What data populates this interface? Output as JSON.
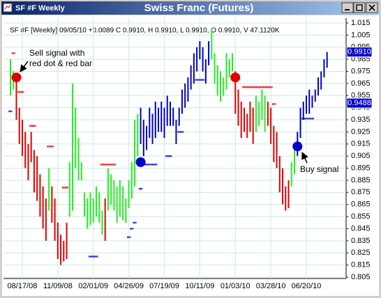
{
  "window": {
    "title": "SF #F Weekly"
  },
  "chart_data": {
    "type": "ohlc",
    "title": "Swiss Franc (Futures)",
    "subtitle": "SF #F [Weekly] 09/05/10 +0.0089 C 0.9910, H 0.9910, L 0.9910, O 0.9910, V 47.1120K",
    "categories": [
      null,
      null,
      null,
      null,
      "08/17/08",
      null,
      null,
      null,
      null,
      null,
      null,
      null,
      null,
      null,
      null,
      null,
      "11/09/08",
      null,
      null,
      null,
      null,
      null,
      null,
      null,
      null,
      null,
      null,
      null,
      "02/01/09",
      null,
      null,
      null,
      null,
      null,
      null,
      null,
      null,
      null,
      null,
      null,
      "04/26/09",
      null,
      null,
      null,
      null,
      null,
      null,
      null,
      null,
      null,
      null,
      null,
      "07/19/09",
      null,
      null,
      null,
      null,
      null,
      null,
      null,
      null,
      null,
      null,
      null,
      "10/11/09",
      null,
      null,
      null,
      null,
      null,
      null,
      null,
      null,
      null,
      null,
      null,
      "01/03/10",
      null,
      null,
      null,
      null,
      null,
      null,
      null,
      null,
      null,
      null,
      null,
      "03/28/10",
      null,
      null,
      null,
      null,
      null,
      null,
      null,
      null,
      null,
      null,
      null,
      "06/20/10",
      null,
      null,
      null,
      null,
      null,
      null,
      null
    ],
    "high": [
      0.985,
      0.975,
      0.972,
      0.945,
      0.935,
      0.925,
      0.915,
      0.925,
      0.91,
      0.905,
      0.89,
      0.88,
      0.87,
      0.895,
      0.88,
      0.87,
      0.85,
      0.84,
      0.835,
      0.85,
      0.9,
      0.965,
      0.945,
      0.92,
      0.9,
      0.875,
      0.87,
      0.875,
      0.87,
      0.88,
      0.875,
      0.86,
      0.87,
      0.895,
      0.89,
      0.885,
      0.88,
      0.885,
      0.88,
      0.87,
      0.885,
      0.9,
      0.935,
      0.94,
      0.945,
      0.935,
      0.93,
      0.945,
      0.94,
      0.95,
      0.945,
      0.95,
      0.945,
      0.955,
      0.95,
      0.945,
      0.935,
      0.945,
      0.96,
      0.965,
      0.97,
      0.98,
      0.99,
      0.995,
      1.0,
      0.995,
      0.985,
      1.0,
      1.01,
      0.99,
      0.98,
      0.975,
      0.97,
      0.99,
      0.985,
      0.99,
      0.975,
      0.96,
      0.95,
      0.945,
      0.94,
      0.95,
      0.945,
      0.955,
      0.95,
      0.96,
      0.955,
      0.95,
      0.945,
      0.93,
      0.925,
      0.905,
      0.895,
      0.88,
      0.885,
      0.9,
      0.91,
      0.925,
      0.945,
      0.95,
      0.955,
      0.96,
      0.955,
      0.96,
      0.97,
      0.975,
      0.985,
      0.991
    ],
    "low": [
      0.955,
      0.96,
      0.935,
      0.915,
      0.905,
      0.895,
      0.885,
      0.9,
      0.875,
      0.868,
      0.855,
      0.845,
      0.835,
      0.86,
      0.85,
      0.835,
      0.82,
      0.815,
      0.818,
      0.82,
      0.855,
      0.86,
      0.895,
      0.885,
      0.885,
      0.855,
      0.845,
      0.848,
      0.85,
      0.855,
      0.85,
      0.84,
      0.835,
      0.86,
      0.865,
      0.86,
      0.85,
      0.855,
      0.852,
      0.85,
      0.862,
      0.87,
      0.88,
      0.905,
      0.915,
      0.905,
      0.91,
      0.92,
      0.915,
      0.92,
      0.925,
      0.925,
      0.92,
      0.93,
      0.93,
      0.93,
      0.915,
      0.93,
      0.94,
      0.945,
      0.95,
      0.96,
      0.965,
      0.975,
      0.985,
      0.975,
      0.965,
      0.98,
      0.985,
      0.965,
      0.955,
      0.95,
      0.955,
      0.96,
      0.97,
      0.975,
      0.94,
      0.93,
      0.92,
      0.925,
      0.92,
      0.925,
      0.915,
      0.925,
      0.93,
      0.935,
      0.925,
      0.93,
      0.915,
      0.9,
      0.895,
      0.875,
      0.865,
      0.86,
      0.862,
      0.88,
      0.89,
      0.905,
      0.92,
      0.935,
      0.94,
      0.94,
      0.945,
      0.95,
      0.955,
      0.96,
      0.97,
      0.978
    ],
    "colors": [
      "#22ee22",
      "#22ee22",
      "#e00000",
      "#e00000",
      "#e00000",
      "#e00000",
      "#e00000",
      "#e00000",
      "#e00000",
      "#e00000",
      "#e00000",
      "#e00000",
      "#e00000",
      "#22ee22",
      "#e00000",
      "#e00000",
      "#e00000",
      "#e00000",
      "#e00000",
      "#e00000",
      "#22ee22",
      "#22ee22",
      "#22ee22",
      "#22ee22",
      "#22ee22",
      "#22ee22",
      "#22ee22",
      "#22ee22",
      "#22ee22",
      "#22ee22",
      "#22ee22",
      "#22ee22",
      "#e00000",
      "#22ee22",
      "#22ee22",
      "#22ee22",
      "#22ee22",
      "#22ee22",
      "#22ee22",
      "#22ee22",
      "#22ee22",
      "#22ee22",
      "#22ee22",
      "#22ee22",
      "#0000cc",
      "#0000cc",
      "#0000cc",
      "#0000cc",
      "#0000cc",
      "#0000cc",
      "#0000cc",
      "#0000cc",
      "#0000cc",
      "#0000cc",
      "#0000cc",
      "#0000cc",
      "#0000cc",
      "#0000cc",
      "#0000cc",
      "#0000cc",
      "#0000cc",
      "#0000cc",
      "#0000cc",
      "#0000cc",
      "#0000cc",
      "#0000cc",
      "#0000cc",
      "#0000cc",
      "#22ee22",
      "#22ee22",
      "#22ee22",
      "#22ee22",
      "#22ee22",
      "#22ee22",
      "#22ee22",
      "#22ee22",
      "#e00000",
      "#e00000",
      "#e00000",
      "#e00000",
      "#e00000",
      "#e00000",
      "#e00000",
      "#22ee22",
      "#22ee22",
      "#22ee22",
      "#22ee22",
      "#e00000",
      "#e00000",
      "#e00000",
      "#e00000",
      "#e00000",
      "#e00000",
      "#e00000",
      "#e00000",
      "#22ee22",
      "#22ee22",
      "#0000cc",
      "#0000cc",
      "#0000cc",
      "#0000cc",
      "#0000cc",
      "#0000cc",
      "#0000cc",
      "#0000cc",
      "#0000cc",
      "#0000cc",
      "#0000cc"
    ],
    "stops": [
      0.942,
      0.99,
      null,
      0.958,
      0.958,
      null,
      null,
      0.93,
      0.93,
      null,
      null,
      null,
      null,
      0.913,
      0.913,
      null,
      null,
      null,
      0.879,
      0.879,
      null,
      null,
      null,
      null,
      null,
      null,
      null,
      0.822,
      0.822,
      0.822,
      null,
      0.898,
      0.898,
      0.898,
      0.898,
      0.898,
      null,
      null,
      null,
      null,
      0.838,
      0.845,
      0.85,
      null,
      0.878,
      null,
      0.898,
      0.898,
      0.898,
      0.898,
      null,
      null,
      null,
      0.905,
      0.905,
      null,
      null,
      0.925,
      0.925,
      null,
      null,
      null,
      null,
      0.968,
      0.968,
      0.968,
      null,
      null,
      null,
      null,
      null,
      null,
      null,
      null,
      null,
      null,
      null,
      null,
      null,
      0.962,
      0.962,
      0.962,
      0.962,
      0.962,
      0.962,
      0.962,
      0.962,
      0.962,
      0.962,
      0.948,
      null,
      null,
      null,
      null,
      null,
      null,
      null,
      null,
      null,
      0.936,
      0.936,
      0.936,
      0.936,
      null,
      null,
      null,
      null,
      null
    ],
    "stop_colors": [
      "#e00000",
      "#0000cc"
    ],
    "signals": [
      null,
      null,
      0.97,
      null,
      null,
      null,
      null,
      null,
      null,
      null,
      null,
      null,
      null,
      null,
      null,
      null,
      null,
      null,
      null,
      null,
      null,
      null,
      null,
      null,
      null,
      null,
      null,
      null,
      null,
      null,
      null,
      null,
      null,
      null,
      null,
      null,
      null,
      null,
      null,
      null,
      null,
      null,
      null,
      null,
      0.9,
      null,
      null,
      null,
      null,
      null,
      null,
      null,
      null,
      null,
      null,
      null,
      null,
      null,
      null,
      null,
      null,
      null,
      null,
      null,
      null,
      null,
      null,
      null,
      null,
      null,
      null,
      null,
      null,
      null,
      null,
      null,
      0.97,
      null,
      null,
      null,
      null,
      null,
      null,
      null,
      null,
      null,
      null,
      null,
      null,
      null,
      null,
      null,
      null,
      null,
      null,
      null,
      null,
      0.913,
      null,
      null,
      null,
      null,
      null,
      null,
      null,
      null,
      null,
      null
    ],
    "price_tags": [
      {
        "value": 0.991,
        "label": "0.9910"
      },
      {
        "value": 0.9488,
        "label": "0.9488"
      }
    ],
    "annotations": [
      {
        "lines": [
          "Sell signal with",
          "red dot & red bar"
        ]
      },
      {
        "lines": [
          "Buy signal"
        ]
      }
    ],
    "ylim": [
      0.805,
      1.015
    ],
    "yticks": [
      0.805,
      0.815,
      0.825,
      0.835,
      0.845,
      0.855,
      0.865,
      0.875,
      0.885,
      0.895,
      0.905,
      0.915,
      0.925,
      0.935,
      0.945,
      0.955,
      0.965,
      0.975,
      0.985,
      0.995,
      1.005,
      1.015
    ],
    "grid": true,
    "grid_color": "#c9ecdc"
  }
}
